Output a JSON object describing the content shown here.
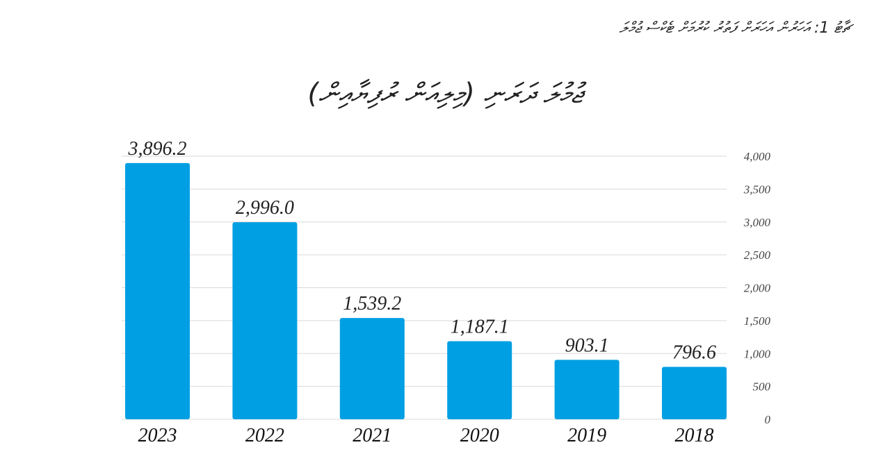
{
  "figure": {
    "caption": "ޗާޓު 1: އަހަރުން އަހަރަށް ފަތުރު ކުރުމަށް ޓެކްސް ޖުމްލަ",
    "title": "ޖުމުލަ ދަރަނި (މިލިއަން ރުފިޔާއިން)"
  },
  "chart_data": {
    "type": "bar",
    "title": "ޖުމުލަ ދަރަނި (މިލިއަން ރުފިޔާއިން)",
    "categories": [
      "2023",
      "2022",
      "2021",
      "2020",
      "2019",
      "2018"
    ],
    "values": [
      3896.2,
      2996.0,
      1539.2,
      1187.1,
      903.1,
      796.6
    ],
    "data_labels": [
      "3,896.2",
      "2,996.0",
      "1,539.2",
      "1,187.1",
      "903.1",
      "796.6"
    ],
    "y_ticks": [
      "0",
      "500",
      "1,000",
      "1,500",
      "2,000",
      "2,500",
      "3,000",
      "3,500",
      "4,000"
    ],
    "ylim": [
      0,
      4000
    ],
    "y_axis_side": "right",
    "grid": true,
    "bar_color": "#009fe3",
    "grid_color": "#d9d9d9"
  }
}
